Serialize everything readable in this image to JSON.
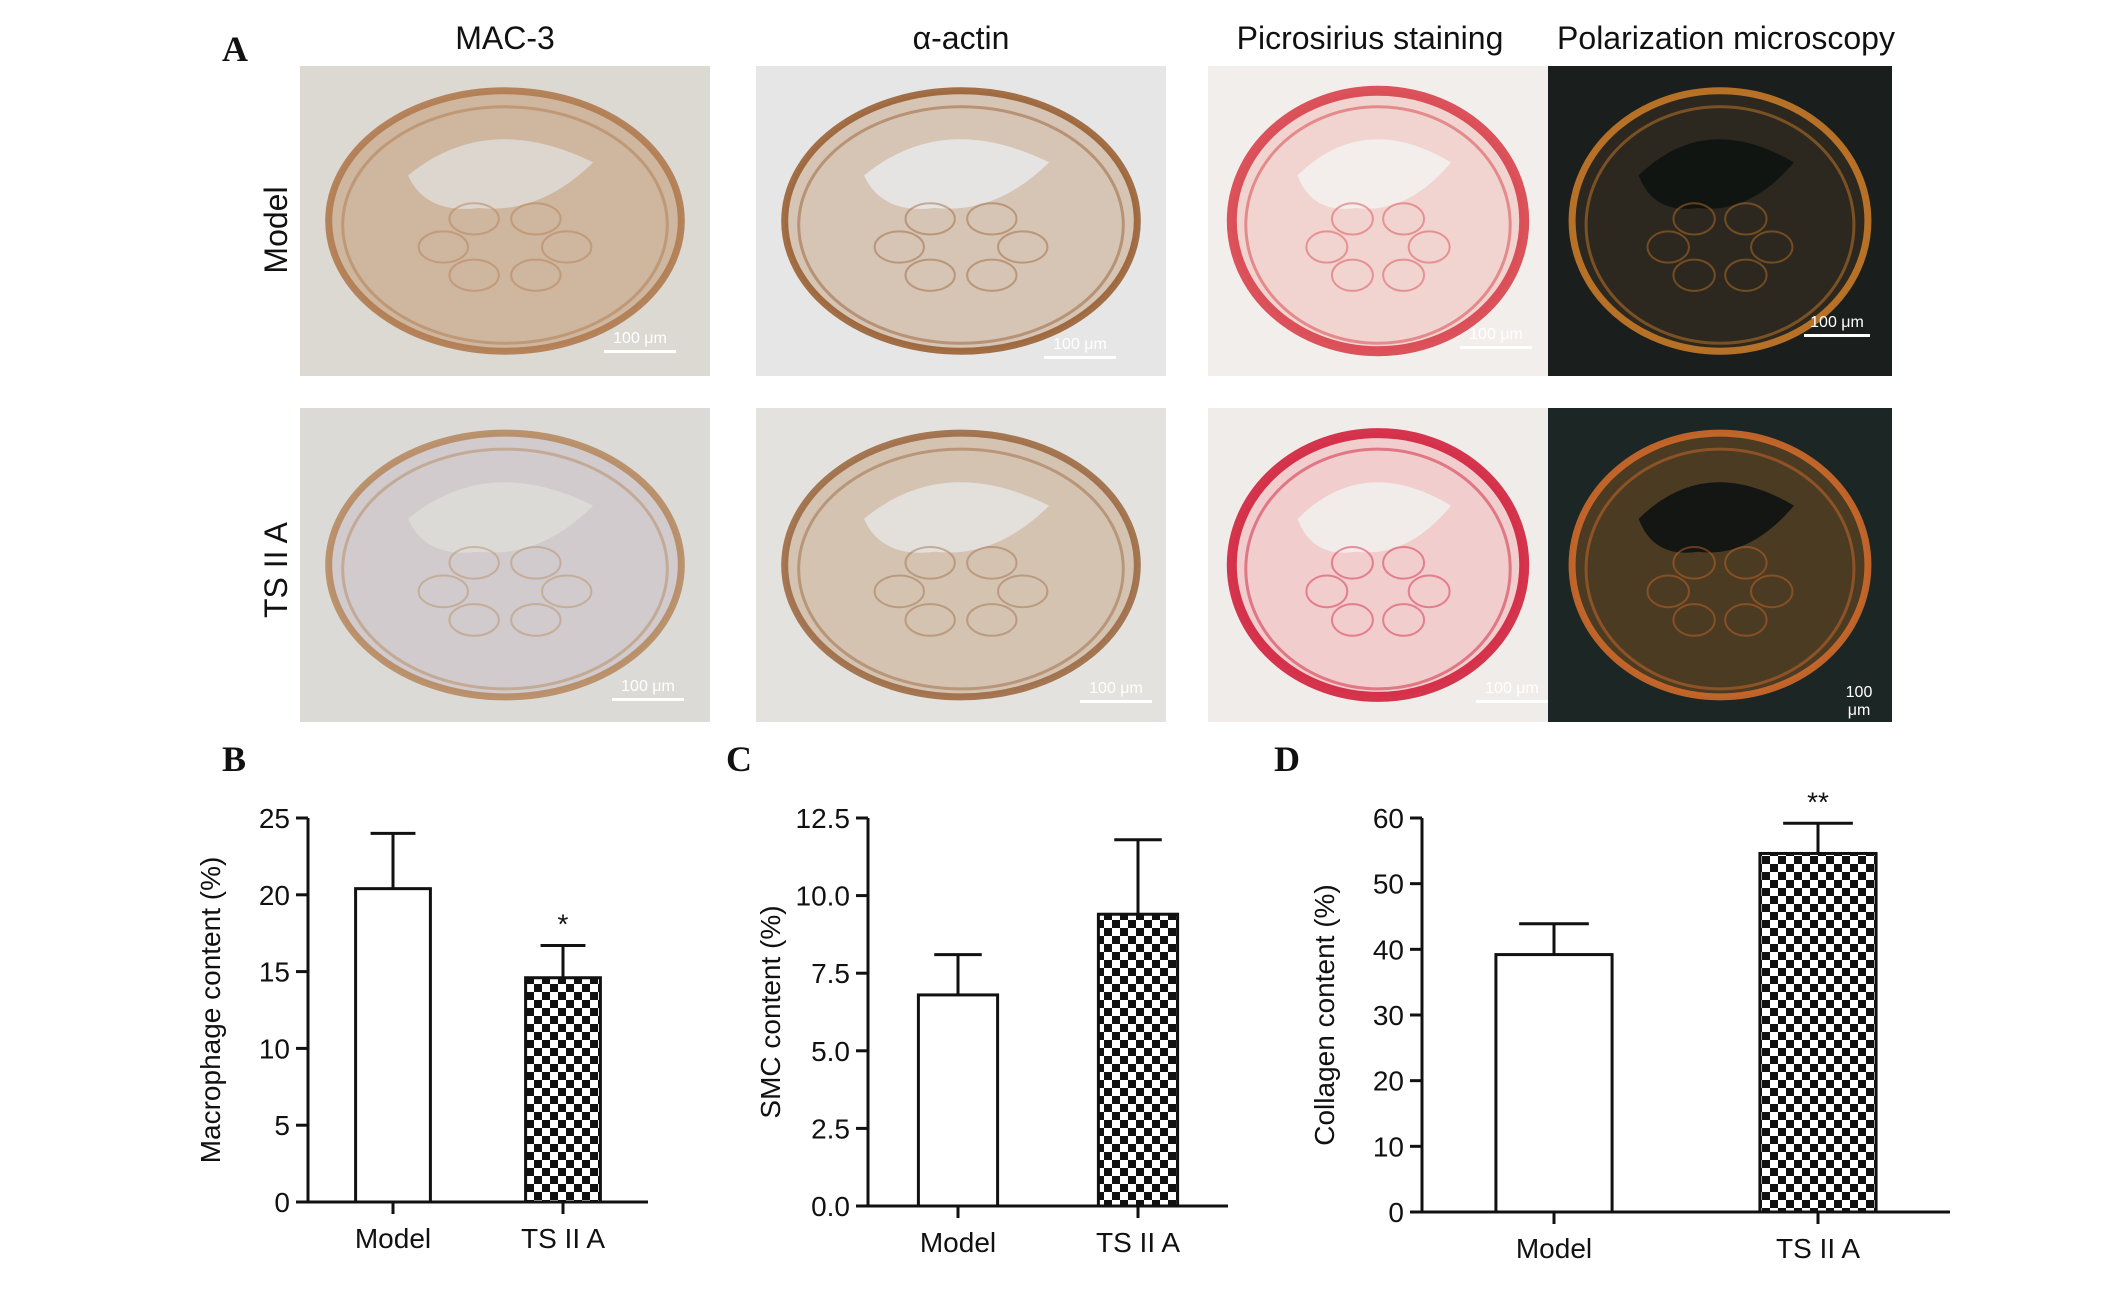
{
  "figure": {
    "panel_labels": {
      "a": "A",
      "b": "B",
      "c": "C",
      "d": "D"
    },
    "column_titles": [
      "MAC-3",
      "α-actin",
      "Picrosirius staining",
      "Polarization microscopy"
    ],
    "row_labels": [
      "Model",
      "TS II A"
    ],
    "scale_label": "100 μm"
  },
  "micrographs": [
    {
      "name": "mac3-model",
      "stain": "brown-ihc",
      "bg": "#dcd8d2",
      "tissue": "#c49a74",
      "wall": "#b07a4e"
    },
    {
      "name": "actin-model",
      "stain": "brown-ihc",
      "bg": "#e6e6e6",
      "tissue": "#c8a88a",
      "wall": "#9a6034"
    },
    {
      "name": "sirius-model",
      "stain": "red",
      "bg": "#f2eeec",
      "tissue": "#f1c0b8",
      "wall": "#d8404a"
    },
    {
      "name": "polar-model",
      "stain": "dark",
      "bg": "#1a1e1c",
      "tissue": "#3a2e22",
      "wall": "#c87a28"
    },
    {
      "name": "mac3-ts",
      "stain": "brown-ihc",
      "bg": "#dcdad6",
      "tissue": "#c9c0c6",
      "wall": "#b68a60"
    },
    {
      "name": "actin-ts",
      "stain": "brown-ihc",
      "bg": "#e4e2de",
      "tissue": "#c8aa8e",
      "wall": "#9c6a42"
    },
    {
      "name": "sirius-ts",
      "stain": "red",
      "bg": "#f0ecea",
      "tissue": "#f2b4b4",
      "wall": "#d2203c"
    },
    {
      "name": "polar-ts",
      "stain": "dark",
      "bg": "#1c2624",
      "tissue": "#6a4a22",
      "wall": "#d06a2a"
    }
  ],
  "chart_data": [
    {
      "type": "bar",
      "panel": "B",
      "categories": [
        "Model",
        "TS II A"
      ],
      "values": [
        20.4,
        14.6
      ],
      "errors": [
        3.6,
        2.1
      ],
      "annotations": [
        "",
        "*"
      ],
      "fills": [
        "white",
        "checker"
      ],
      "ylabel": "Macrophage content (%)",
      "ylim": [
        0,
        25
      ],
      "yticks": [
        0,
        5,
        10,
        15,
        20,
        25
      ],
      "ytick_labels": [
        "0",
        "5",
        "10",
        "15",
        "20",
        "25"
      ]
    },
    {
      "type": "bar",
      "panel": "C",
      "categories": [
        "Model",
        "TS II A"
      ],
      "values": [
        6.8,
        9.4
      ],
      "errors": [
        1.3,
        2.4
      ],
      "annotations": [
        "",
        ""
      ],
      "fills": [
        "white",
        "checker"
      ],
      "ylabel": "SMC content (%)",
      "ylim": [
        0,
        12.5
      ],
      "yticks": [
        0,
        2.5,
        5,
        7.5,
        10,
        12.5
      ],
      "ytick_labels": [
        "0.0",
        "2.5",
        "5.0",
        "7.5",
        "10.0",
        "12.5"
      ]
    },
    {
      "type": "bar",
      "panel": "D",
      "categories": [
        "Model",
        "TS II A"
      ],
      "values": [
        39.2,
        54.6
      ],
      "errors": [
        4.7,
        4.6
      ],
      "annotations": [
        "",
        "**"
      ],
      "fills": [
        "white",
        "checker"
      ],
      "ylabel": "Collagen content (%)",
      "ylim": [
        0,
        60
      ],
      "yticks": [
        0,
        10,
        20,
        30,
        40,
        50,
        60
      ],
      "ytick_labels": [
        "0",
        "10",
        "20",
        "30",
        "40",
        "50",
        "60"
      ]
    }
  ]
}
